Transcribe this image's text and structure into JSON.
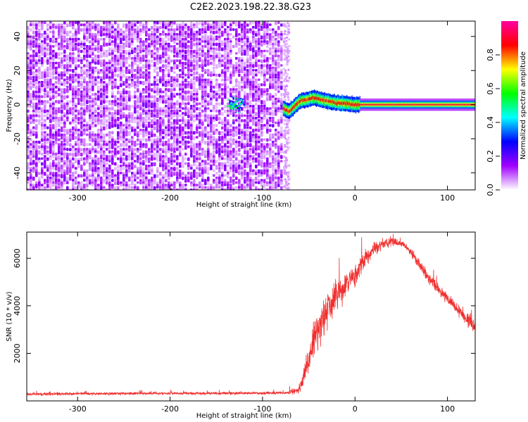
{
  "title": "C2E2.2023.198.22.38.G23",
  "chart_data": [
    {
      "type": "heatmap",
      "xlabel": "Height of straight line (km)",
      "ylabel": "Frequency (Hz)",
      "xlim": [
        -355,
        130
      ],
      "ylim": [
        -50,
        49
      ],
      "xticks": [
        -300,
        -200,
        -100,
        0,
        100
      ],
      "yticks": [
        -40,
        -20,
        0,
        20,
        40
      ],
      "colorbar": {
        "label": "Normalized spectral amplitude",
        "range": [
          0,
          1
        ],
        "ticks": [
          0.0,
          0.2,
          0.4,
          0.6,
          0.8
        ],
        "colors": [
          "#ffffff",
          "#a000ff",
          "#0000ff",
          "#00ffff",
          "#00ff00",
          "#ffff00",
          "#ff0000",
          "#ff00a0"
        ]
      },
      "features": {
        "noise_region_x": [
          -355,
          -78
        ],
        "tone_path": [
          [
            -78,
            -2
          ],
          [
            -72,
            -4
          ],
          [
            -66,
            -1
          ],
          [
            -60,
            2
          ],
          [
            -52,
            3
          ],
          [
            -45,
            4
          ],
          [
            -38,
            3
          ],
          [
            -30,
            2
          ],
          [
            -20,
            1
          ],
          [
            -10,
            0.5
          ],
          [
            0,
            0
          ],
          [
            130,
            0
          ]
        ],
        "blob": {
          "x": -130,
          "y": 1
        }
      },
      "grid": false
    },
    {
      "type": "line",
      "xlabel": "Height of straight line (km)",
      "ylabel": "SNR (10 * v/v)",
      "xlim": [
        -355,
        130
      ],
      "ylim": [
        0,
        7100
      ],
      "xticks": [
        -300,
        -200,
        -100,
        0,
        100
      ],
      "yticks": [
        2000,
        4000,
        6000
      ],
      "color": "#f03030",
      "series": [
        {
          "x": [
            -355,
            -300,
            -250,
            -200,
            -150,
            -100,
            -75,
            -60,
            -50,
            -45,
            -40,
            -35,
            -30,
            -20,
            -10,
            0,
            10,
            20,
            30,
            40,
            50,
            60,
            70,
            80,
            90,
            100,
            110,
            120,
            130
          ],
          "values": [
            280,
            300,
            310,
            320,
            320,
            330,
            330,
            500,
            1600,
            2600,
            3000,
            3400,
            3900,
            4400,
            4800,
            5300,
            5900,
            6350,
            6600,
            6700,
            6650,
            6300,
            5700,
            5100,
            4700,
            4300,
            3900,
            3500,
            3100
          ],
          "noise": [
            100,
            100,
            100,
            100,
            100,
            100,
            100,
            300,
            1300,
            1500,
            1500,
            1500,
            1500,
            1300,
            1100,
            900,
            700,
            500,
            400,
            300,
            250,
            300,
            400,
            400,
            450,
            450,
            450,
            500,
            500
          ]
        }
      ],
      "grid": false
    }
  ]
}
